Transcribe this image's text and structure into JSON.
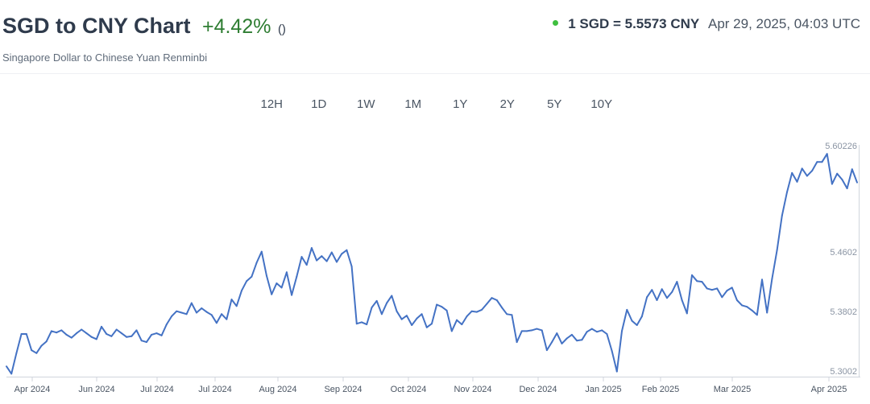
{
  "header": {
    "title": "SGD to CNY Chart",
    "change": "+4.42%",
    "change_paren": "()",
    "subtitle": "Singapore Dollar to Chinese Yuan Renminbi",
    "rate": "1 SGD = 5.5573 CNY",
    "timestamp": "Apr 29, 2025, 04:03 UTC"
  },
  "ranges": [
    "12H",
    "1D",
    "1W",
    "1M",
    "1Y",
    "2Y",
    "5Y",
    "10Y"
  ],
  "colors": {
    "line": "#4472c4",
    "change": "#2e7d32",
    "live_dot": "#3fbf3f",
    "title": "#2f3b4c"
  },
  "chart_data": {
    "type": "line",
    "title": "",
    "xlabel": "",
    "ylabel": "",
    "x_ticks": [
      "Apr 2024",
      "Jun 2024",
      "Jul 2024",
      "Jul 2024",
      "Aug 2024",
      "Sep 2024",
      "Oct 2024",
      "Nov 2024",
      "Dec 2024",
      "Jan 2025",
      "Feb 2025",
      "Mar 2025",
      "Apr 2025"
    ],
    "y_ticks": [
      "5.60226",
      "5.4602",
      "5.3802",
      "5.3002"
    ],
    "ylim": [
      5.3002,
      5.60226
    ],
    "grid": false,
    "series": [
      {
        "values": [
          5.312,
          5.302,
          5.33,
          5.356,
          5.356,
          5.334,
          5.33,
          5.34,
          5.346,
          5.36,
          5.358,
          5.361,
          5.355,
          5.351,
          5.357,
          5.362,
          5.357,
          5.352,
          5.349,
          5.366,
          5.356,
          5.353,
          5.362,
          5.357,
          5.352,
          5.353,
          5.361,
          5.347,
          5.345,
          5.355,
          5.357,
          5.354,
          5.369,
          5.38,
          5.387,
          5.385,
          5.383,
          5.398,
          5.385,
          5.391,
          5.386,
          5.382,
          5.371,
          5.383,
          5.376,
          5.403,
          5.394,
          5.415,
          5.428,
          5.434,
          5.453,
          5.468,
          5.435,
          5.41,
          5.425,
          5.419,
          5.44,
          5.409,
          5.434,
          5.461,
          5.45,
          5.473,
          5.456,
          5.462,
          5.455,
          5.467,
          5.454,
          5.465,
          5.47,
          5.448,
          5.37,
          5.372,
          5.369,
          5.392,
          5.401,
          5.383,
          5.398,
          5.408,
          5.387,
          5.376,
          5.381,
          5.368,
          5.377,
          5.383,
          5.365,
          5.37,
          5.396,
          5.393,
          5.388,
          5.36,
          5.375,
          5.369,
          5.38,
          5.387,
          5.386,
          5.389,
          5.397,
          5.405,
          5.402,
          5.392,
          5.383,
          5.382,
          5.345,
          5.36,
          5.36,
          5.361,
          5.363,
          5.361,
          5.334,
          5.345,
          5.357,
          5.343,
          5.35,
          5.355,
          5.347,
          5.348,
          5.359,
          5.363,
          5.359,
          5.361,
          5.356,
          5.333,
          5.305,
          5.36,
          5.389,
          5.374,
          5.368,
          5.38,
          5.406,
          5.416,
          5.402,
          5.417,
          5.405,
          5.413,
          5.427,
          5.402,
          5.384,
          5.436,
          5.428,
          5.427,
          5.418,
          5.416,
          5.418,
          5.406,
          5.415,
          5.419,
          5.402,
          5.395,
          5.393,
          5.388,
          5.382,
          5.43,
          5.385,
          5.431,
          5.47,
          5.517,
          5.549,
          5.575,
          5.563,
          5.581,
          5.571,
          5.578,
          5.59,
          5.59,
          5.601,
          5.56,
          5.574,
          5.566,
          5.554,
          5.58,
          5.562
        ]
      }
    ]
  }
}
